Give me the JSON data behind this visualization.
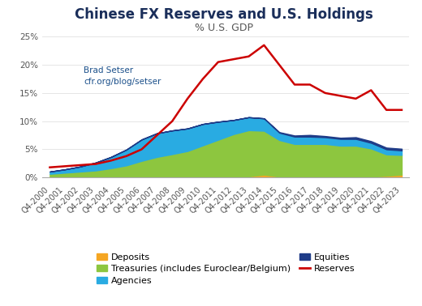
{
  "title": "Chinese FX Reserves and U.S. Holdings",
  "subtitle": "% U.S. GDP",
  "annotation_line1": "Brad Setser",
  "annotation_line2": "cfr.org/blog/setser",
  "ylim": [
    0,
    25
  ],
  "yticks": [
    0,
    5,
    10,
    15,
    20,
    25
  ],
  "ytick_labels": [
    "0%",
    "5%",
    "10%",
    "15%",
    "20%",
    "25%"
  ],
  "quarters": [
    "Q4-2000",
    "Q4-2001",
    "Q4-2002",
    "Q4-2003",
    "Q4-2004",
    "Q4-2005",
    "Q4-2006",
    "Q4-2007",
    "Q4-2008",
    "Q4-2009",
    "Q4-2010",
    "Q4-2011",
    "Q4-2012",
    "Q4-2013",
    "Q4-2014",
    "Q4-2015",
    "Q4-2016",
    "Q4-2017",
    "Q4-2018",
    "Q4-2019",
    "Q4-2020",
    "Q4-2021",
    "Q4-2022",
    "Q4-2023"
  ],
  "deposits": [
    0.15,
    0.15,
    0.15,
    0.15,
    0.15,
    0.15,
    0.15,
    0.15,
    0.15,
    0.2,
    0.2,
    0.2,
    0.2,
    0.2,
    0.5,
    0.15,
    0.15,
    0.15,
    0.15,
    0.15,
    0.15,
    0.15,
    0.3,
    0.5
  ],
  "treasuries": [
    0.5,
    0.7,
    0.9,
    1.1,
    1.5,
    2.0,
    2.8,
    3.5,
    4.0,
    4.5,
    5.5,
    6.5,
    7.5,
    8.2,
    7.8,
    6.5,
    5.8,
    5.8,
    5.8,
    5.5,
    5.5,
    5.0,
    3.8,
    3.5
  ],
  "agencies": [
    0.4,
    0.6,
    0.9,
    1.4,
    2.0,
    2.8,
    3.8,
    4.2,
    4.2,
    4.0,
    3.8,
    3.2,
    2.5,
    2.3,
    2.2,
    1.3,
    1.3,
    1.3,
    1.2,
    1.2,
    1.2,
    1.0,
    0.9,
    0.8
  ],
  "equities": [
    0.0,
    0.0,
    0.0,
    0.0,
    0.0,
    0.0,
    0.0,
    0.0,
    0.0,
    0.0,
    0.0,
    0.0,
    0.0,
    0.0,
    0.0,
    0.1,
    0.2,
    0.3,
    0.2,
    0.2,
    0.3,
    0.3,
    0.3,
    0.3
  ],
  "reserves": [
    1.8,
    2.0,
    2.2,
    2.4,
    3.0,
    3.8,
    5.0,
    7.5,
    10.0,
    14.0,
    17.5,
    20.5,
    21.0,
    21.5,
    23.5,
    20.0,
    16.5,
    16.5,
    15.0,
    14.5,
    14.0,
    15.5,
    12.0,
    12.0
  ],
  "color_deposits": "#f5a623",
  "color_treasuries": "#8dc63f",
  "color_agencies": "#29abe2",
  "color_equities": "#1f3c88",
  "color_reserves": "#cc0000",
  "background_color": "#ffffff",
  "title_color": "#1a2e5a",
  "subtitle_color": "#555555",
  "annotation_color": "#1a4f8a",
  "title_fontsize": 12,
  "subtitle_fontsize": 9,
  "tick_fontsize": 7.5,
  "legend_fontsize": 8,
  "annotation_fontsize": 7.5
}
